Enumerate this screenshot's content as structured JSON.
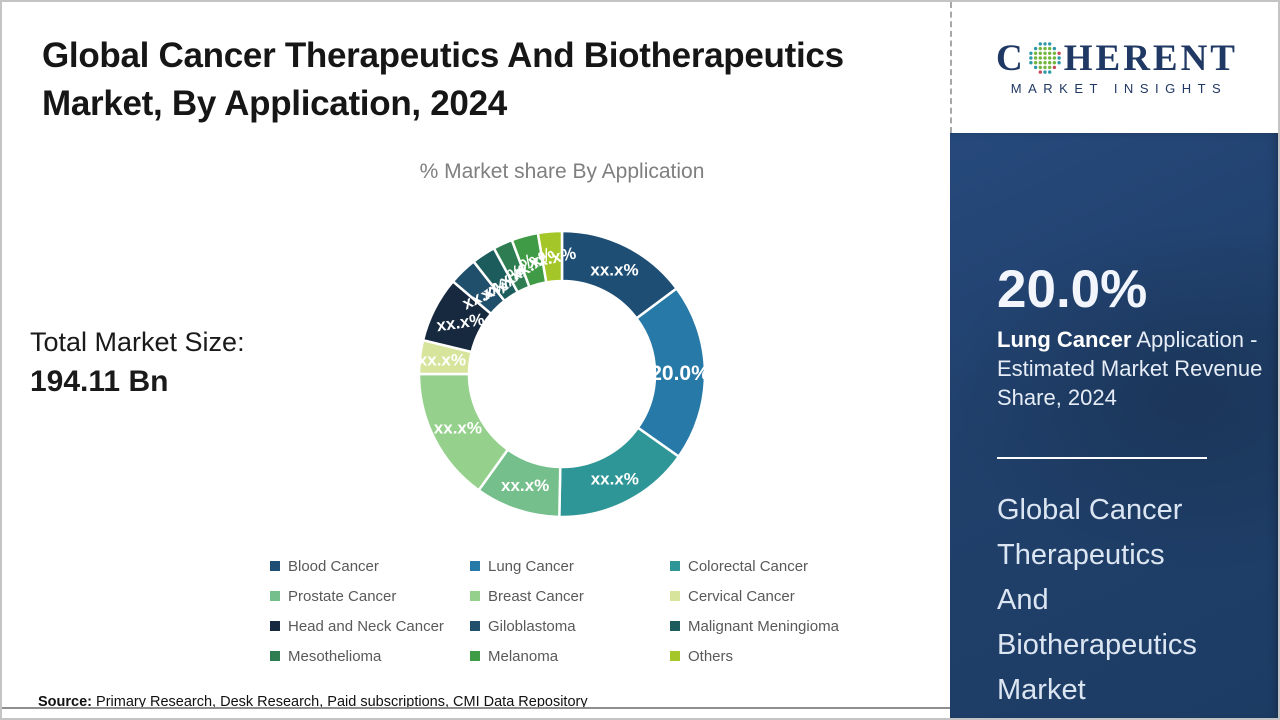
{
  "header": {
    "title": "Global Cancer Therapeutics And Biotherapeutics Market, By Application, 2024"
  },
  "logo": {
    "word_start": "C",
    "word_end": "HERENT",
    "subtitle": "MARKET INSIGHTS",
    "color": "#203864"
  },
  "main": {
    "chart_subtitle": "% Market share By Application",
    "total_label": "Total Market Size:",
    "total_value": "194.11 Bn",
    "source_label": "Source:",
    "source_text": "Primary Research, Desk Research, Paid subscriptions, CMI Data Repository"
  },
  "chart_data": {
    "type": "pie",
    "subtype": "donut",
    "title": "% Market share By Application",
    "legend_position": "bottom",
    "labels_masked": true,
    "segments": [
      {
        "name": "Blood Cancer",
        "label": "xx.x%",
        "value": 14.8,
        "color": "#1e4e74",
        "label_radius": 117,
        "label_rotation": 0
      },
      {
        "name": "Lung Cancer",
        "label": "20.0%",
        "value": 20.0,
        "color": "#2779a8",
        "label_radius": 118,
        "label_rotation": 0,
        "label_size": 21
      },
      {
        "name": "Colorectal Cancer",
        "label": "xx.x%",
        "value": 15.5,
        "color": "#2f9697",
        "label_radius": 117,
        "label_rotation": 0
      },
      {
        "name": "Prostate Cancer",
        "label": "xx.x%",
        "value": 9.6,
        "color": "#74bf8b",
        "label_radius": 117,
        "label_rotation": 0
      },
      {
        "name": "Breast Cancer",
        "label": "xx.x%",
        "value": 15.1,
        "color": "#95d18c",
        "label_radius": 117,
        "label_rotation": 0
      },
      {
        "name": "Cervical Cancer",
        "label": "xx.x%",
        "value": 3.8,
        "color": "#d7e49c",
        "label_radius": 121,
        "label_rotation": 0
      },
      {
        "name": "Head and Neck Cancer",
        "label": "xx.x%",
        "value": 7.4,
        "color": "#16293f",
        "label_radius": 114,
        "label_rotation": -8
      },
      {
        "name": "Giloblastoma",
        "label": "xx.x%",
        "value": 3.2,
        "color": "#1f4f6b",
        "label_radius": 111,
        "label_rotation": -26
      },
      {
        "name": "Malignant Meningioma",
        "label": "xx.x%",
        "value": 2.7,
        "color": "#1d5c5d",
        "label_radius": 110,
        "label_rotation": -36
      },
      {
        "name": "Mesothelioma",
        "label": "xx.x%",
        "value": 2.2,
        "color": "#2e7d52",
        "label_radius": 111,
        "label_rotation": -44
      },
      {
        "name": "Melanoma",
        "label": "xx.x%",
        "value": 3.0,
        "color": "#3f9b45",
        "label_radius": 114,
        "label_rotation": -33
      },
      {
        "name": "Others",
        "label": "xx.x%",
        "value": 2.7,
        "color": "#a5c628",
        "label_radius": 117,
        "label_rotation": -12
      }
    ]
  },
  "sidebar": {
    "stat_value": "20.0%",
    "stat_bold": "Lung Cancer",
    "stat_rest": " Application - Estimated Market Revenue Share, 2024",
    "headline": "Global Cancer Therapeutics And Biotherapeutics Market",
    "panel_color": "#20406b"
  }
}
